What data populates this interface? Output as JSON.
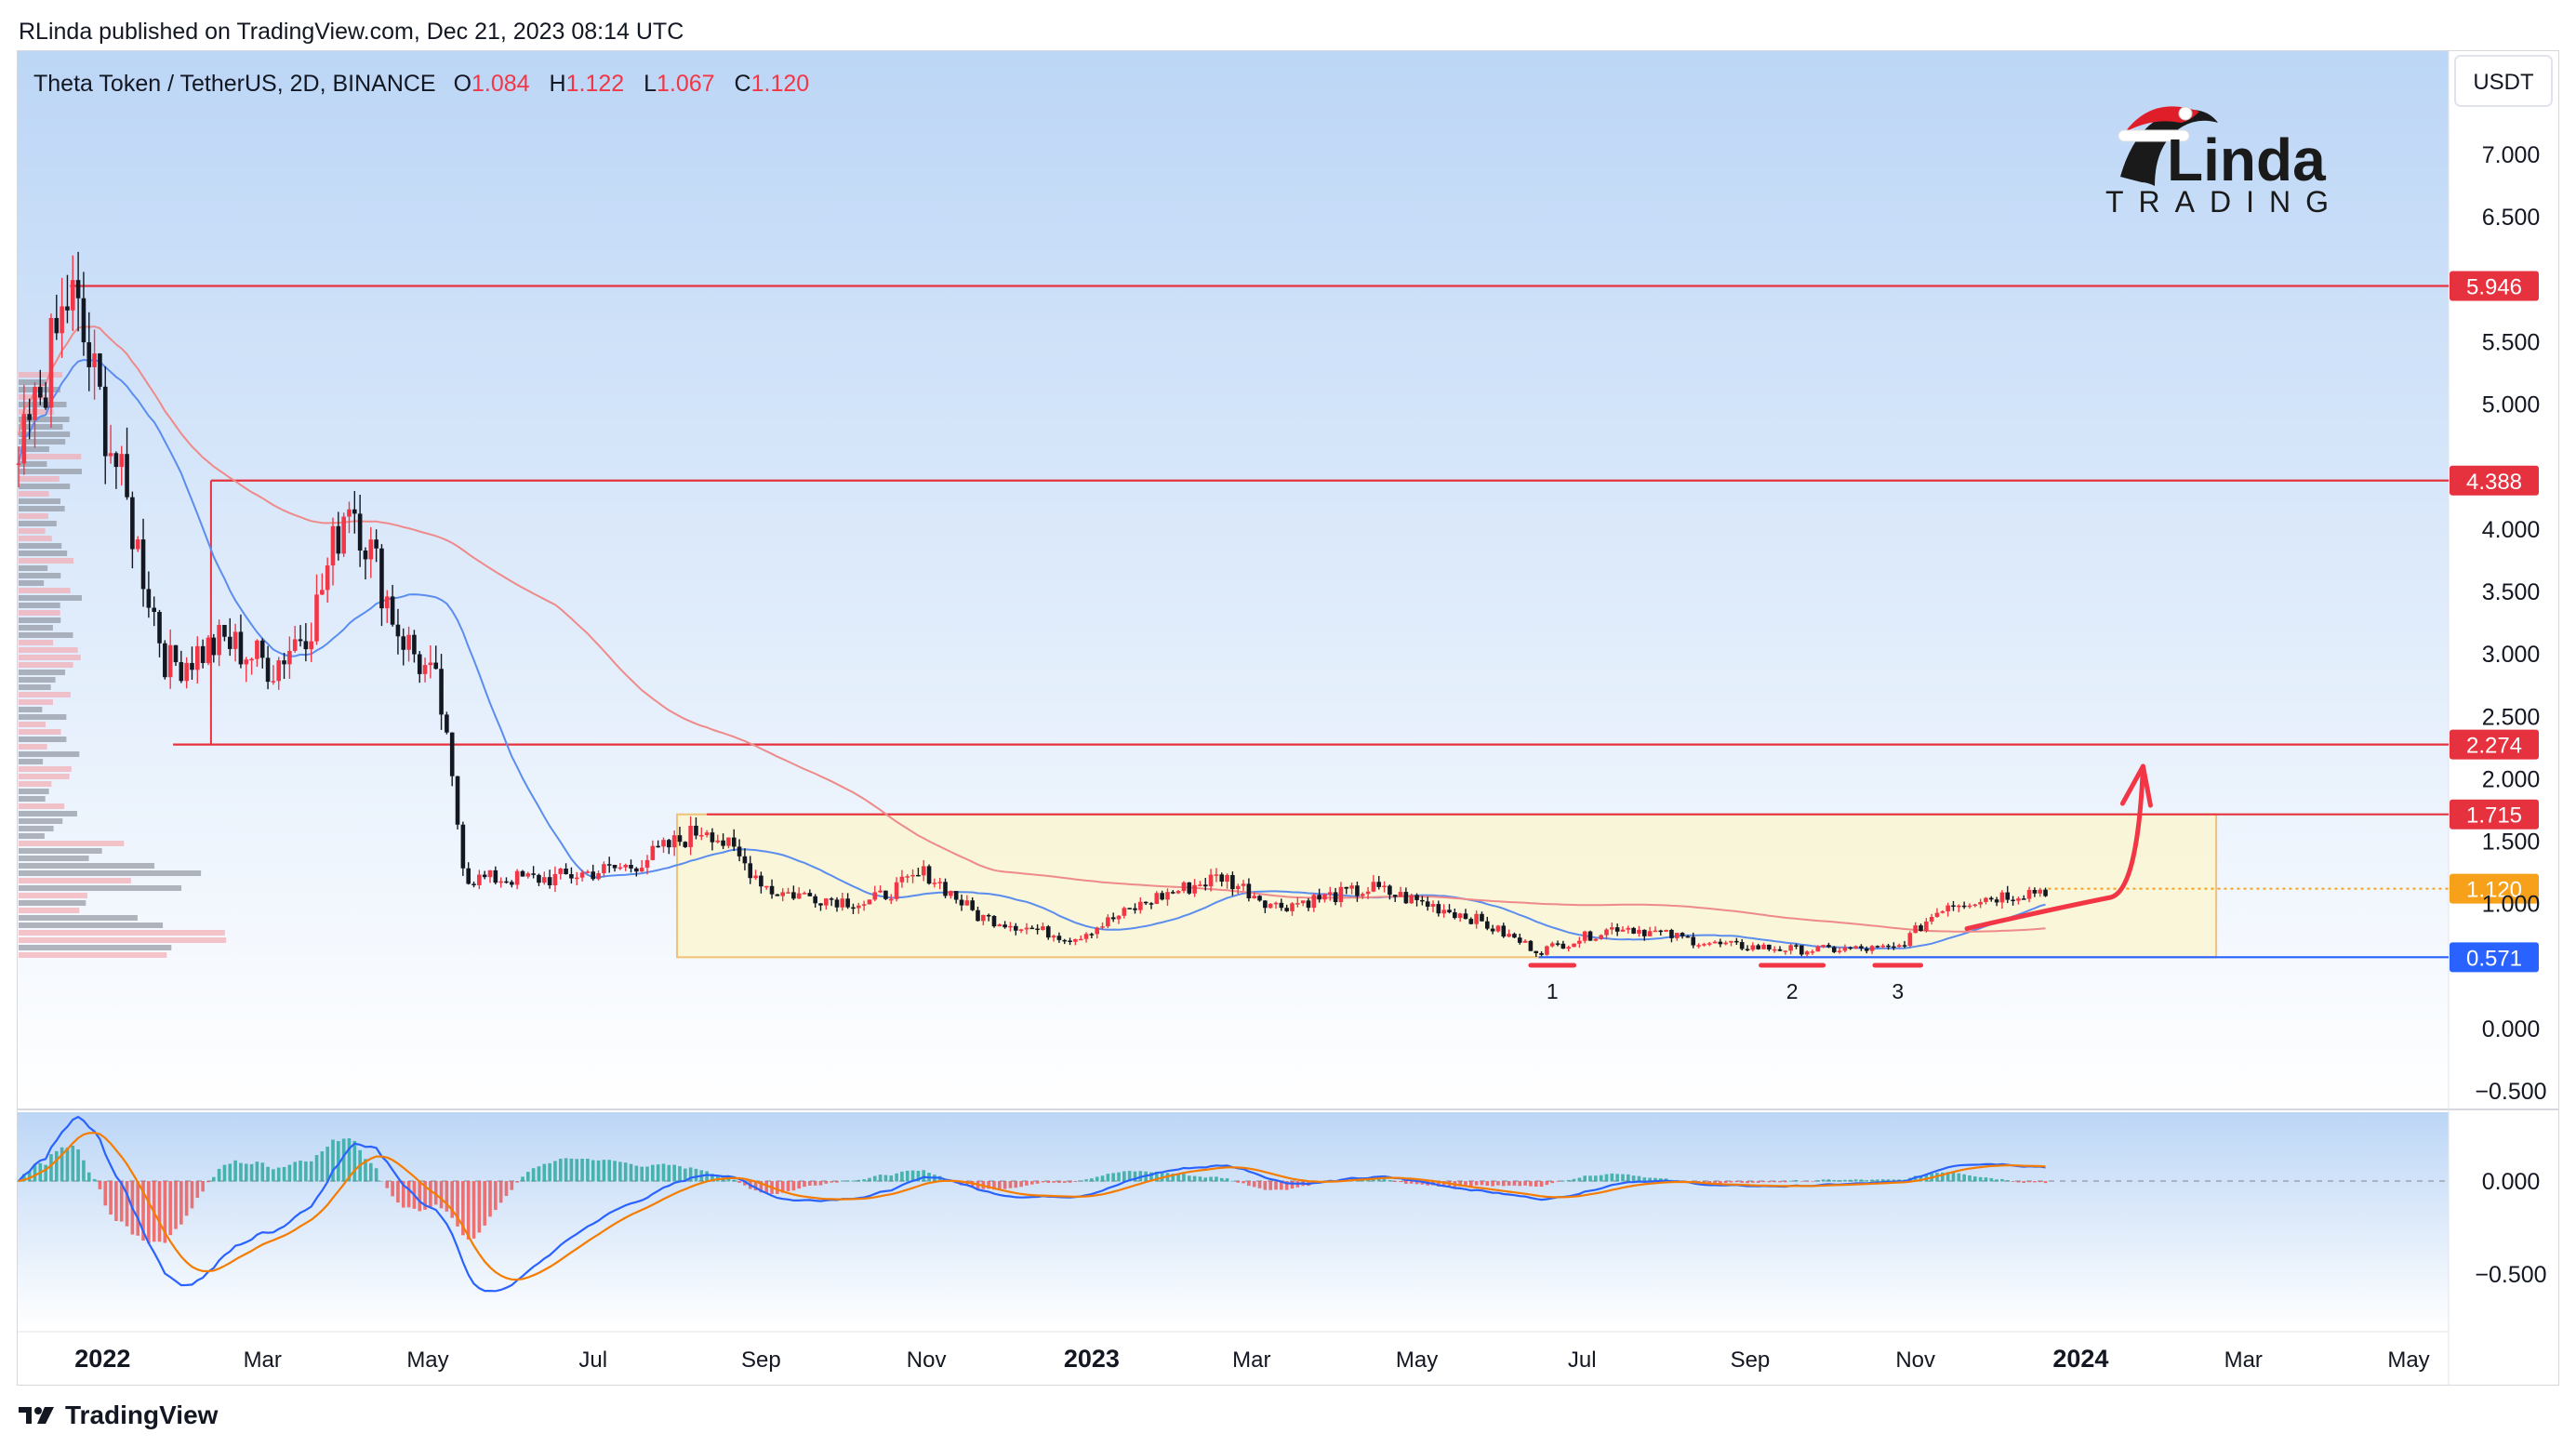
{
  "header": {
    "published_by": "RLinda published on TradingView.com, Dec 21, 2023 08:14 UTC"
  },
  "legend": {
    "symbol": "Theta Token / TetherUS, 2D, BINANCE",
    "o_label": "O",
    "o_value": "1.084",
    "h_label": "H",
    "h_value": "1.122",
    "l_label": "L",
    "l_value": "1.067",
    "c_label": "C",
    "c_value": "1.120"
  },
  "currency_button": "USDT",
  "watermark": {
    "brand_top": "Linda",
    "brand_bottom": "TRADING"
  },
  "footer": {
    "brand": "TradingView"
  },
  "colors": {
    "bg_top": "#bcd6f6",
    "bg_bottom": "#ffffff",
    "up": "#f23645",
    "down": "#131722",
    "level_line": "#e5323e",
    "support_line": "#2962ff",
    "zone_fill": "#fbf6d3",
    "zone_border": "#f0b860",
    "ma_fast": "#5b8def",
    "ma_slow": "#ef8a8a",
    "macd": "#2962ff",
    "signal": "#f57c00",
    "hist_pos": "#26a69a",
    "hist_neg": "#ef5350",
    "price_label_bg": "#f7a11a",
    "arrow": "#f23645"
  },
  "chart_data": {
    "type": "candlestick",
    "symbol": "THETA/USDT",
    "timeframe": "2D",
    "x_ticks": [
      "2022",
      "Mar",
      "May",
      "Jul",
      "Sep",
      "Nov",
      "2023",
      "Mar",
      "May",
      "Jul",
      "Sep",
      "Nov",
      "2024",
      "Mar",
      "May"
    ],
    "y_ticks": [
      "7.000",
      "6.500",
      "5.500",
      "5.000",
      "4.000",
      "3.500",
      "3.000",
      "2.500",
      "2.000",
      "1.500",
      "1.000",
      "0.000",
      "−0.500"
    ],
    "y_range": [
      -0.8,
      7.6
    ],
    "levels": [
      {
        "value": 5.946,
        "label": "5.946"
      },
      {
        "value": 4.388,
        "label": "4.388"
      },
      {
        "value": 2.274,
        "label": "2.274"
      },
      {
        "value": 1.715,
        "label": "1.715"
      },
      {
        "value": 0.571,
        "label": "0.571",
        "kind": "support"
      }
    ],
    "last_price": {
      "value": 1.12,
      "label": "1.120"
    },
    "zone": {
      "from": "Aug 2022",
      "to": "Feb 2024",
      "low": 0.571,
      "high": 1.715
    },
    "annotations": [
      "1",
      "2",
      "3"
    ],
    "price_path": [
      [
        "2021-12-01",
        4.5
      ],
      [
        "2021-12-20",
        5.9
      ],
      [
        "2022-01-05",
        4.6
      ],
      [
        "2022-01-25",
        2.9
      ],
      [
        "2022-02-15",
        3.1
      ],
      [
        "2022-03-05",
        2.9
      ],
      [
        "2022-03-20",
        3.3
      ],
      [
        "2022-04-02",
        4.3
      ],
      [
        "2022-04-20",
        3.2
      ],
      [
        "2022-05-05",
        2.7
      ],
      [
        "2022-05-15",
        1.2
      ],
      [
        "2022-06-15",
        1.2
      ],
      [
        "2022-07-15",
        1.3
      ],
      [
        "2022-08-12",
        1.62
      ],
      [
        "2022-09-05",
        1.1
      ],
      [
        "2022-10-10",
        1.0
      ],
      [
        "2022-11-01",
        1.25
      ],
      [
        "2022-11-20",
        0.9
      ],
      [
        "2022-12-25",
        0.72
      ],
      [
        "2023-01-25",
        1.05
      ],
      [
        "2023-02-18",
        1.22
      ],
      [
        "2023-03-10",
        0.98
      ],
      [
        "2023-04-15",
        1.12
      ],
      [
        "2023-05-20",
        0.9
      ],
      [
        "2023-06-15",
        0.62
      ],
      [
        "2023-07-15",
        0.82
      ],
      [
        "2023-08-20",
        0.67
      ],
      [
        "2023-09-20",
        0.63
      ],
      [
        "2023-10-25",
        0.64
      ],
      [
        "2023-11-12",
        1.0
      ],
      [
        "2023-12-20",
        1.12
      ]
    ],
    "macd_range": [
      -0.75,
      0.3
    ],
    "macd_ticks": [
      "0.000",
      "−0.500"
    ]
  }
}
